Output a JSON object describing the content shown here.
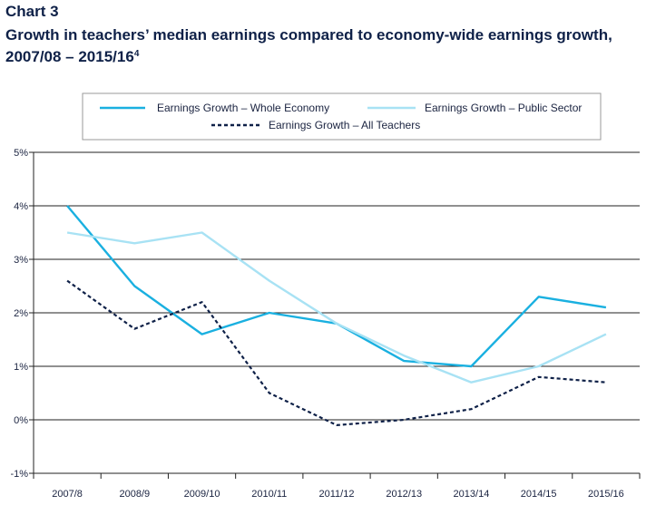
{
  "chart_label": "Chart 3",
  "chart_title": "Growth in teachers’ median earnings compared to economy-wide earnings growth, 2007/08 – 2015/16",
  "title_footnote": "4",
  "chart_data": {
    "type": "line",
    "categories": [
      "2007/8",
      "2008/9",
      "2009/10",
      "2010/11",
      "2011/12",
      "2012/13",
      "2013/14",
      "2014/15",
      "2015/16"
    ],
    "ylim": [
      -1,
      5
    ],
    "yticks": [
      5,
      4,
      3,
      2,
      1,
      0,
      -1
    ],
    "ytick_labels": [
      "5%",
      "4%",
      "3%",
      "2%",
      "1%",
      "0%",
      "-1%"
    ],
    "grid": true,
    "legend_position": "top",
    "series": [
      {
        "name": "Earnings Growth – Whole Economy",
        "color": "#1ab0e0",
        "style": "solid",
        "values": [
          4.0,
          2.5,
          1.6,
          2.0,
          1.8,
          1.1,
          1.0,
          2.3,
          2.1
        ]
      },
      {
        "name": "Earnings Growth – Public Sector",
        "color": "#a8e2f4",
        "style": "solid",
        "values": [
          3.5,
          3.3,
          3.5,
          2.6,
          1.8,
          1.2,
          0.7,
          1.0,
          1.6
        ]
      },
      {
        "name": "Earnings Growth – All Teachers",
        "color": "#0f2148",
        "style": "dashed",
        "values": [
          2.6,
          1.7,
          2.2,
          0.5,
          -0.1,
          0.0,
          0.2,
          0.8,
          0.7
        ]
      }
    ]
  }
}
